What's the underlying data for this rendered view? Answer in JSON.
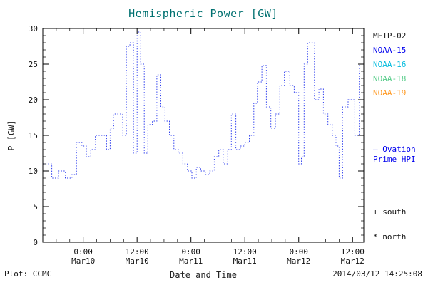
{
  "colors": {
    "title": "#007070",
    "axis": "#000000"
  },
  "footer": {
    "plot_credit": "Plot: CCMC",
    "timestamp": "2014/03/12 14:25:08"
  },
  "legend": {
    "satellites": [
      {
        "label": "METP-02",
        "color": "#222222"
      },
      {
        "label": "NOAA-15",
        "color": "#0000ee"
      },
      {
        "label": "NOAA-16",
        "color": "#00bbdd"
      },
      {
        "label": "NOAA-18",
        "color": "#55cc88"
      },
      {
        "label": "NOAA-19",
        "color": "#ff9922"
      }
    ],
    "model_line1": "— Ovation",
    "model_line2": "Prime HPI",
    "model_color": "#0000ee",
    "south_marker": "+ south",
    "north_marker": "* north"
  },
  "chart_data": {
    "type": "line",
    "subtype": "dotted-step",
    "title": "Hemispheric Power [GW]",
    "xlabel": "Date and Time",
    "ylabel": "P [GW]",
    "series_name": "Ovation Prime HPI",
    "ylim": [
      0,
      30
    ],
    "y_ticks": [
      0,
      5,
      10,
      15,
      20,
      25,
      30
    ],
    "t_unit": "hours, axis spans ~2014-03-09 15:00 to 2014-03-12 14:30",
    "t_range": [
      0,
      71.5
    ],
    "x_ticks": [
      {
        "t": 9,
        "line1": "0:00",
        "line2": "Mar10"
      },
      {
        "t": 21,
        "line1": "12:00",
        "line2": "Mar10"
      },
      {
        "t": 33,
        "line1": "0:00",
        "line2": "Mar11"
      },
      {
        "t": 45,
        "line1": "12:00",
        "line2": "Mar11"
      },
      {
        "t": 57,
        "line1": "0:00",
        "line2": "Mar12"
      },
      {
        "t": 69,
        "line1": "12:00",
        "line2": "Mar12"
      }
    ],
    "line_color": "#2a3bee",
    "t": [
      0,
      2,
      3.5,
      5,
      6.5,
      7.5,
      8.7,
      9.7,
      10.7,
      11.7,
      13,
      14.2,
      15,
      15.8,
      17,
      17.8,
      18.6,
      19.4,
      20.2,
      21,
      21.8,
      22.6,
      23.4,
      24.4,
      25.4,
      26.3,
      27.2,
      28.2,
      29.2,
      30.2,
      31.2,
      32.2,
      33.2,
      34.2,
      35.2,
      36.2,
      37.2,
      38.2,
      39.2,
      40.2,
      41.2,
      42,
      43,
      44,
      45,
      46,
      47,
      47.8,
      48.8,
      49.8,
      50.8,
      51.8,
      52.8,
      53.8,
      55,
      56,
      57,
      57.6,
      58.2,
      59,
      60.5,
      61.5,
      62.5,
      63.5,
      64.5,
      65.3,
      66,
      66.8,
      68,
      69.5,
      70.5
    ],
    "values": [
      11,
      9,
      10,
      9,
      9.5,
      14,
      13.5,
      12,
      13,
      15,
      15,
      13,
      16,
      18,
      18,
      15,
      27.5,
      28,
      12.5,
      29.5,
      25,
      12.5,
      16.5,
      17,
      23.5,
      19,
      17,
      15,
      13,
      12.5,
      11,
      10,
      9,
      10.5,
      10,
      9.5,
      10,
      12,
      13,
      11,
      13,
      18,
      13,
      13.5,
      14,
      15,
      19.5,
      22.5,
      24.8,
      19,
      16,
      18,
      22,
      24,
      22,
      21,
      11,
      12,
      25,
      28,
      20,
      21.5,
      18,
      16.5,
      15,
      13.5,
      9,
      19,
      20,
      15,
      25
    ]
  }
}
